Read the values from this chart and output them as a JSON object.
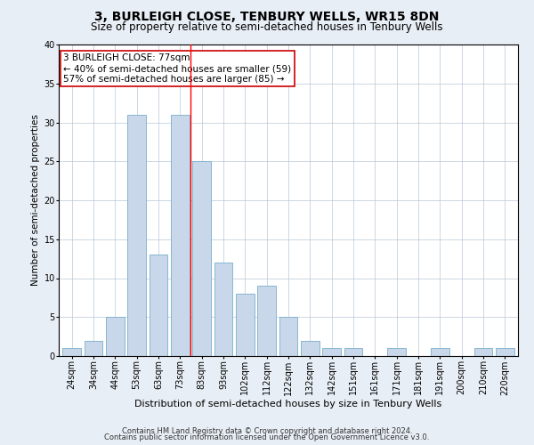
{
  "title": "3, BURLEIGH CLOSE, TENBURY WELLS, WR15 8DN",
  "subtitle": "Size of property relative to semi-detached houses in Tenbury Wells",
  "xlabel": "Distribution of semi-detached houses by size in Tenbury Wells",
  "ylabel": "Number of semi-detached properties",
  "categories": [
    "24sqm",
    "34sqm",
    "44sqm",
    "53sqm",
    "63sqm",
    "73sqm",
    "83sqm",
    "93sqm",
    "102sqm",
    "112sqm",
    "122sqm",
    "132sqm",
    "142sqm",
    "151sqm",
    "161sqm",
    "171sqm",
    "181sqm",
    "191sqm",
    "200sqm",
    "210sqm",
    "220sqm"
  ],
  "values": [
    1,
    2,
    5,
    31,
    13,
    31,
    25,
    12,
    8,
    9,
    5,
    2,
    1,
    1,
    0,
    1,
    0,
    1,
    0,
    1,
    1
  ],
  "bar_color": "#c8d8ea",
  "bar_edge_color": "#7aaecb",
  "ylim": [
    0,
    40
  ],
  "yticks": [
    0,
    5,
    10,
    15,
    20,
    25,
    30,
    35,
    40
  ],
  "red_line_x": 5.5,
  "annotation_title": "3 BURLEIGH CLOSE: 77sqm",
  "annotation_line1": "← 40% of semi-detached houses are smaller (59)",
  "annotation_line2": "57% of semi-detached houses are larger (85) →",
  "annotation_box_color": "#ffffff",
  "annotation_box_edge": "#cc0000",
  "footer1": "Contains HM Land Registry data © Crown copyright and database right 2024.",
  "footer2": "Contains public sector information licensed under the Open Government Licence v3.0.",
  "background_color": "#e8eef5",
  "plot_background": "#ffffff",
  "title_fontsize": 10,
  "subtitle_fontsize": 8.5,
  "ylabel_fontsize": 7.5,
  "xlabel_fontsize": 8,
  "tick_fontsize": 7,
  "annotation_fontsize": 7.5,
  "footer_fontsize": 6
}
